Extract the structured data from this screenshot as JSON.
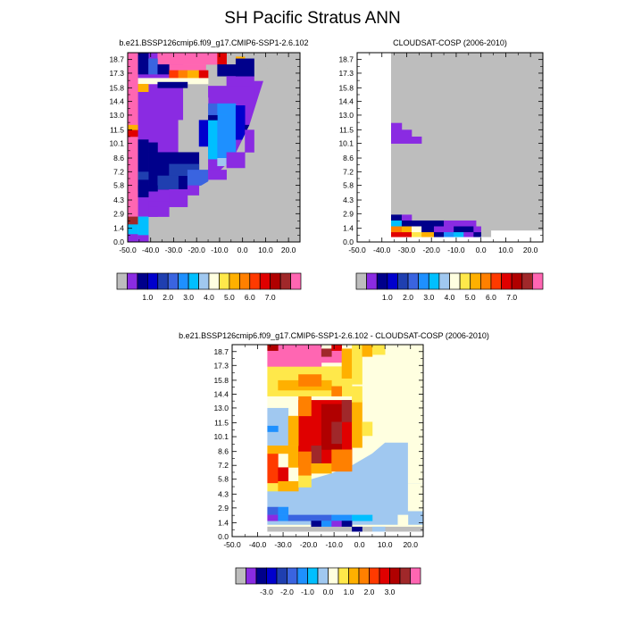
{
  "page": {
    "title": "SH Pacific Stratus ANN"
  },
  "colors": {
    "missing": "#bdbdbd",
    "abs_scale": [
      "#bdbdbd",
      "#8a2be2",
      "#00008b",
      "#0000cd",
      "#1f3fb0",
      "#3a64e0",
      "#1e90ff",
      "#00bfff",
      "#a0c8f0",
      "#ffffe0",
      "#ffe84a",
      "#ffb000",
      "#ff8000",
      "#ff3a00",
      "#e00000",
      "#b00000",
      "#a0282a",
      "#ff66b2"
    ],
    "diff_scale": [
      "#bdbdbd",
      "#8a2be2",
      "#00008b",
      "#0000cd",
      "#1f3fb0",
      "#3a64e0",
      "#1e90ff",
      "#00bfff",
      "#a0c8f0",
      "#ffffe0",
      "#ffe84a",
      "#ffb000",
      "#ff8000",
      "#ff3a00",
      "#e00000",
      "#b00000",
      "#a0282a",
      "#ff66b2"
    ]
  },
  "chart_data": [
    {
      "type": "heatmap",
      "title": "b.e21.BSSP126cmip6.f09_g17.CMIP6-SSP1-2.6.102",
      "x_ticks": [
        "-50.0",
        "-40.0",
        "-30.0",
        "-20.0",
        "-10.0",
        "0.0",
        "10.0",
        "20.0"
      ],
      "y_ticks": [
        "0.0",
        "1.4",
        "2.9",
        "4.3",
        "5.8",
        "7.2",
        "8.6",
        "10.1",
        "11.5",
        "13.0",
        "14.4",
        "15.8",
        "17.3",
        "18.7"
      ],
      "xlim": [
        -50,
        25
      ],
      "ylim": [
        0,
        19.4
      ],
      "colorbar_labels": [
        "1.0",
        "2.0",
        "3.0",
        "4.0",
        "5.0",
        "6.0",
        "7.0"
      ],
      "note": "missing (grey) area east and below the stratus region"
    },
    {
      "type": "heatmap",
      "title": "CLOUDSAT-COSP (2006-2010)",
      "x_ticks": [
        "-50.0",
        "-40.0",
        "-30.0",
        "-20.0",
        "-10.0",
        "0.0",
        "10.0",
        "20.0"
      ],
      "y_ticks": [
        "0.0",
        "1.4",
        "2.9",
        "4.3",
        "5.8",
        "7.2",
        "8.6",
        "10.1",
        "11.5",
        "13.0",
        "14.4",
        "15.8",
        "17.3",
        "18.7"
      ],
      "xlim": [
        -50,
        25
      ],
      "ylim": [
        0,
        19.4
      ],
      "colorbar_labels": [
        "1.0",
        "2.0",
        "3.0",
        "4.0",
        "5.0",
        "6.0",
        "7.0"
      ]
    },
    {
      "type": "heatmap",
      "title": "b.e21.BSSP126cmip6.f09_g17.CMIP6-SSP1-2.6.102 - CLOUDSAT-COSP (2006-2010)",
      "x_ticks": [
        "-50.0",
        "-40.0",
        "-30.0",
        "-20.0",
        "-10.0",
        "0.0",
        "10.0",
        "20.0"
      ],
      "y_ticks": [
        "0.0",
        "1.4",
        "2.9",
        "4.3",
        "5.8",
        "7.2",
        "8.6",
        "10.1",
        "11.5",
        "13.0",
        "14.4",
        "15.8",
        "17.3",
        "18.7"
      ],
      "xlim": [
        -50,
        25
      ],
      "ylim": [
        0,
        19.4
      ],
      "colorbar_labels": [
        "-3.0",
        "-2.0",
        "-1.0",
        "0.0",
        "1.0",
        "2.0",
        "3.0"
      ]
    }
  ]
}
